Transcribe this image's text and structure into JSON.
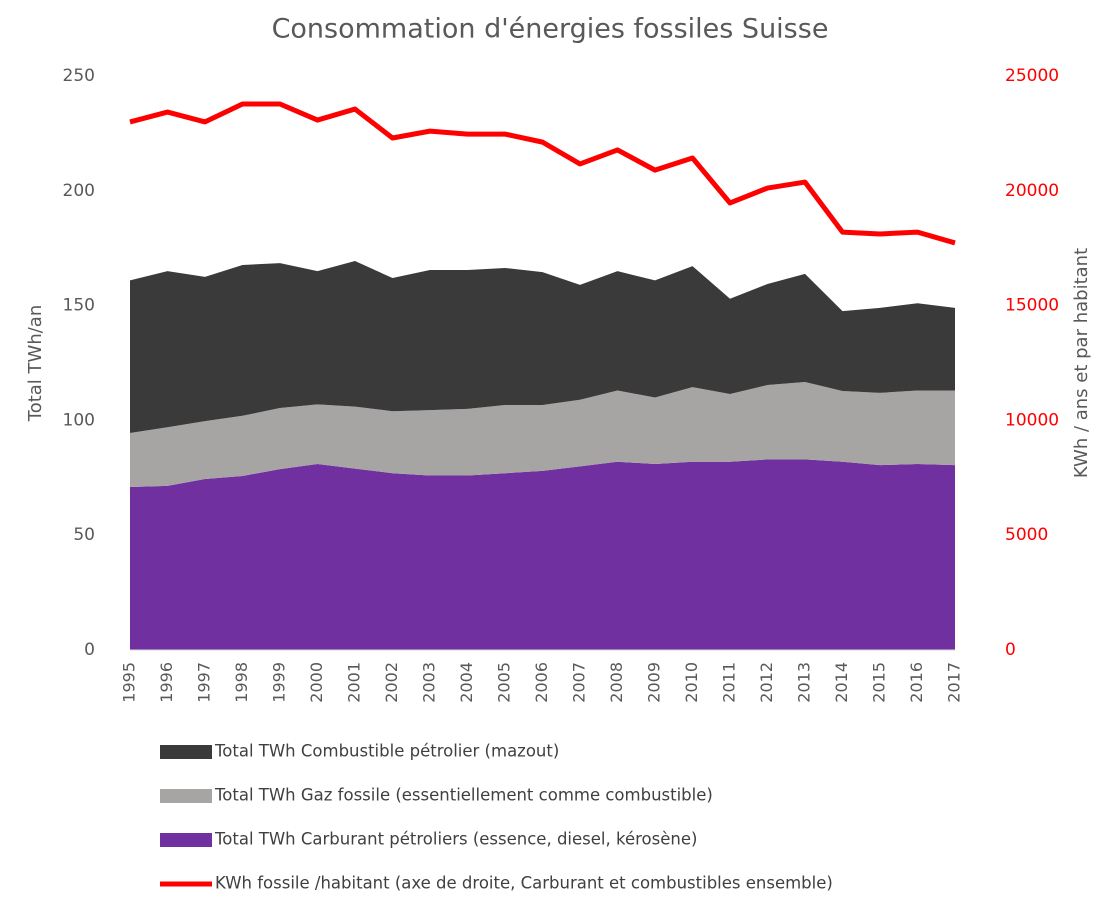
{
  "chart_data": {
    "type": "stacked-area-line",
    "title": "Consommation d'énergies fossiles Suisse",
    "y_label": "Total TWh/an",
    "y2_label": "KWh / ans et par habitant",
    "categories": [
      "1995",
      "1996",
      "1997",
      "1998",
      "1999",
      "2000",
      "2001",
      "2002",
      "2003",
      "2004",
      "2005",
      "2006",
      "2007",
      "2008",
      "2009",
      "2010",
      "2011",
      "2012",
      "2013",
      "2014",
      "2015",
      "2016",
      "2017"
    ],
    "stacked": true,
    "grid": false,
    "series": [
      {
        "name": "Total TWh Combustible pétrolier (mazout)",
        "kind": "area",
        "color": "#3b3a3a",
        "values": [
          66.5,
          68,
          62.8,
          65.7,
          63.1,
          58,
          63.4,
          58,
          61,
          60.5,
          59.7,
          57.9,
          50,
          52,
          51,
          52.7,
          41.5,
          44,
          47.1,
          34.8,
          37,
          38,
          36
        ]
      },
      {
        "name": "Total TWh Gaz fossile (essentiellement comme combustible)",
        "kind": "area",
        "color": "#a7a4a4",
        "values": [
          23.5,
          25.5,
          25.2,
          26.2,
          26.6,
          26,
          27,
          27,
          28.5,
          29,
          29.7,
          28.7,
          29,
          31,
          29,
          32.5,
          29.5,
          32.4,
          33.7,
          30.8,
          31.5,
          32,
          32.5
        ]
      },
      {
        "name": "Total TWh Carburant pétroliers (essence, diesel, kérosène)",
        "kind": "area",
        "color": "#7030a0",
        "values": [
          71,
          71.5,
          74.5,
          75.8,
          78.8,
          81,
          79,
          77,
          76,
          76,
          77,
          78,
          80,
          82,
          81,
          82,
          82,
          83,
          83,
          82,
          80.5,
          81,
          80.5
        ]
      },
      {
        "name": "KWh fossile /habitant (axe de droite, Carburant et combustibles ensemble)",
        "kind": "line",
        "axis": "y2",
        "color": "#ff0000",
        "values": [
          23000,
          23430,
          23000,
          23780,
          23780,
          23080,
          23560,
          22300,
          22600,
          22470,
          22470,
          22120,
          21170,
          21780,
          20900,
          21430,
          19470,
          20120,
          20380,
          18200,
          18120,
          18200,
          17730
        ]
      }
    ],
    "ylim": [
      0,
      250
    ],
    "yticks": [
      0,
      50,
      100,
      150,
      200,
      250
    ],
    "y2lim": [
      0,
      25000
    ],
    "y2ticks": [
      0,
      5000,
      10000,
      15000,
      20000,
      25000
    ]
  }
}
